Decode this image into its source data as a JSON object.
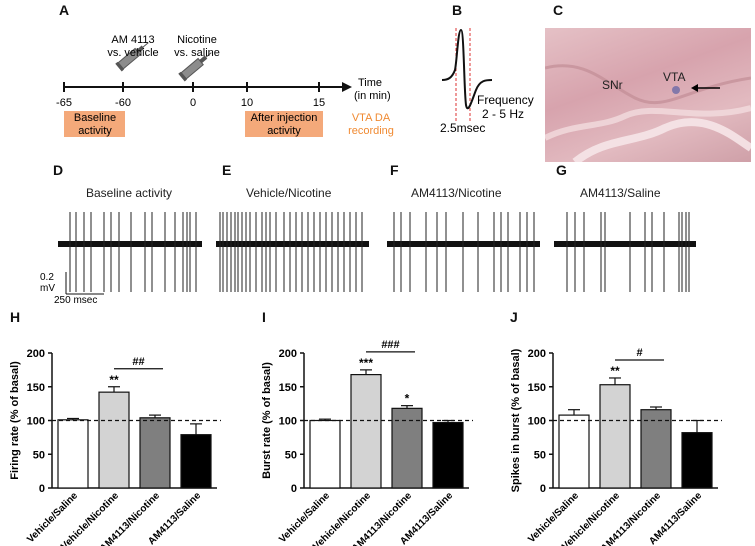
{
  "panels": {
    "A": "A",
    "B": "B",
    "C": "C",
    "D": "D",
    "E": "E",
    "F": "F",
    "G": "G",
    "H": "H",
    "I": "I",
    "J": "J"
  },
  "timeline": {
    "ticks": [
      "-65",
      "-60",
      "0",
      "10",
      "15"
    ],
    "injection1": "AM 4113\nvs. vehicle",
    "injection2": "Nicotine\nvs. saline",
    "time_label": "Time\n(in min)",
    "baseline_box": "Baseline\nactivity",
    "after_box": "After injection\nactivity",
    "recording_label": "VTA DA\nrecording",
    "box_color": "#f4a97a",
    "recording_color": "#f08a32"
  },
  "waveform": {
    "frequency": "Frequency\n2 - 5 Hz",
    "duration": "2.5msec"
  },
  "histology": {
    "snr": "SNr",
    "vta": "VTA"
  },
  "traces": {
    "D": "Baseline activity",
    "E": "Vehicle/Nicotine",
    "F": "AM4113/Nicotine",
    "G": "AM4113/Saline",
    "scale_mv": "0.2\nmV",
    "scale_ms": "250 msec"
  },
  "chart_data": [
    {
      "type": "bar",
      "panel": "H",
      "ylabel": "Firing rate (% of basal)",
      "categories": [
        "Vehicle/Saline",
        "Vehicle/Nicotine",
        "AM4113/Nicotine",
        "AM4113/Saline"
      ],
      "values": [
        101,
        142,
        104,
        79
      ],
      "errors": [
        2,
        8,
        4,
        16
      ],
      "colors": [
        "#ffffff",
        "#d3d3d3",
        "#7f7f7f",
        "#000000"
      ],
      "ylim": [
        0,
        200
      ],
      "yticks": [
        "0",
        "50",
        "100",
        "150",
        "200"
      ],
      "stars": [
        "",
        "**",
        "",
        ""
      ],
      "bracket": {
        "from": 1,
        "to": 2,
        "label": "##"
      },
      "baseline": 100
    },
    {
      "type": "bar",
      "panel": "I",
      "ylabel": "Burst rate (% of basal)",
      "categories": [
        "Vehicle/Saline",
        "Vehicle/Nicotine",
        "AM4113/Nicotine",
        "AM4113/Saline"
      ],
      "values": [
        100,
        168,
        118,
        97
      ],
      "errors": [
        2,
        7,
        4,
        3
      ],
      "colors": [
        "#ffffff",
        "#d3d3d3",
        "#7f7f7f",
        "#000000"
      ],
      "ylim": [
        0,
        200
      ],
      "yticks": [
        "0",
        "50",
        "100",
        "150",
        "200"
      ],
      "stars": [
        "",
        "***",
        "*",
        ""
      ],
      "bracket": {
        "from": 1,
        "to": 2,
        "label": "###"
      },
      "baseline": 100
    },
    {
      "type": "bar",
      "panel": "J",
      "ylabel": "Spikes in burst (% of basal)",
      "categories": [
        "Vehicle/Saline",
        "Vehicle/Nicotine",
        "AM4113/Nicotine",
        "AM4113/Saline"
      ],
      "values": [
        108,
        153,
        116,
        82
      ],
      "errors": [
        8,
        10,
        4,
        18
      ],
      "colors": [
        "#ffffff",
        "#d3d3d3",
        "#7f7f7f",
        "#000000"
      ],
      "ylim": [
        0,
        200
      ],
      "yticks": [
        "0",
        "50",
        "100",
        "150",
        "200"
      ],
      "stars": [
        "",
        "**",
        "",
        ""
      ],
      "bracket": {
        "from": 1,
        "to": 2,
        "label": "#"
      },
      "baseline": 100
    }
  ]
}
